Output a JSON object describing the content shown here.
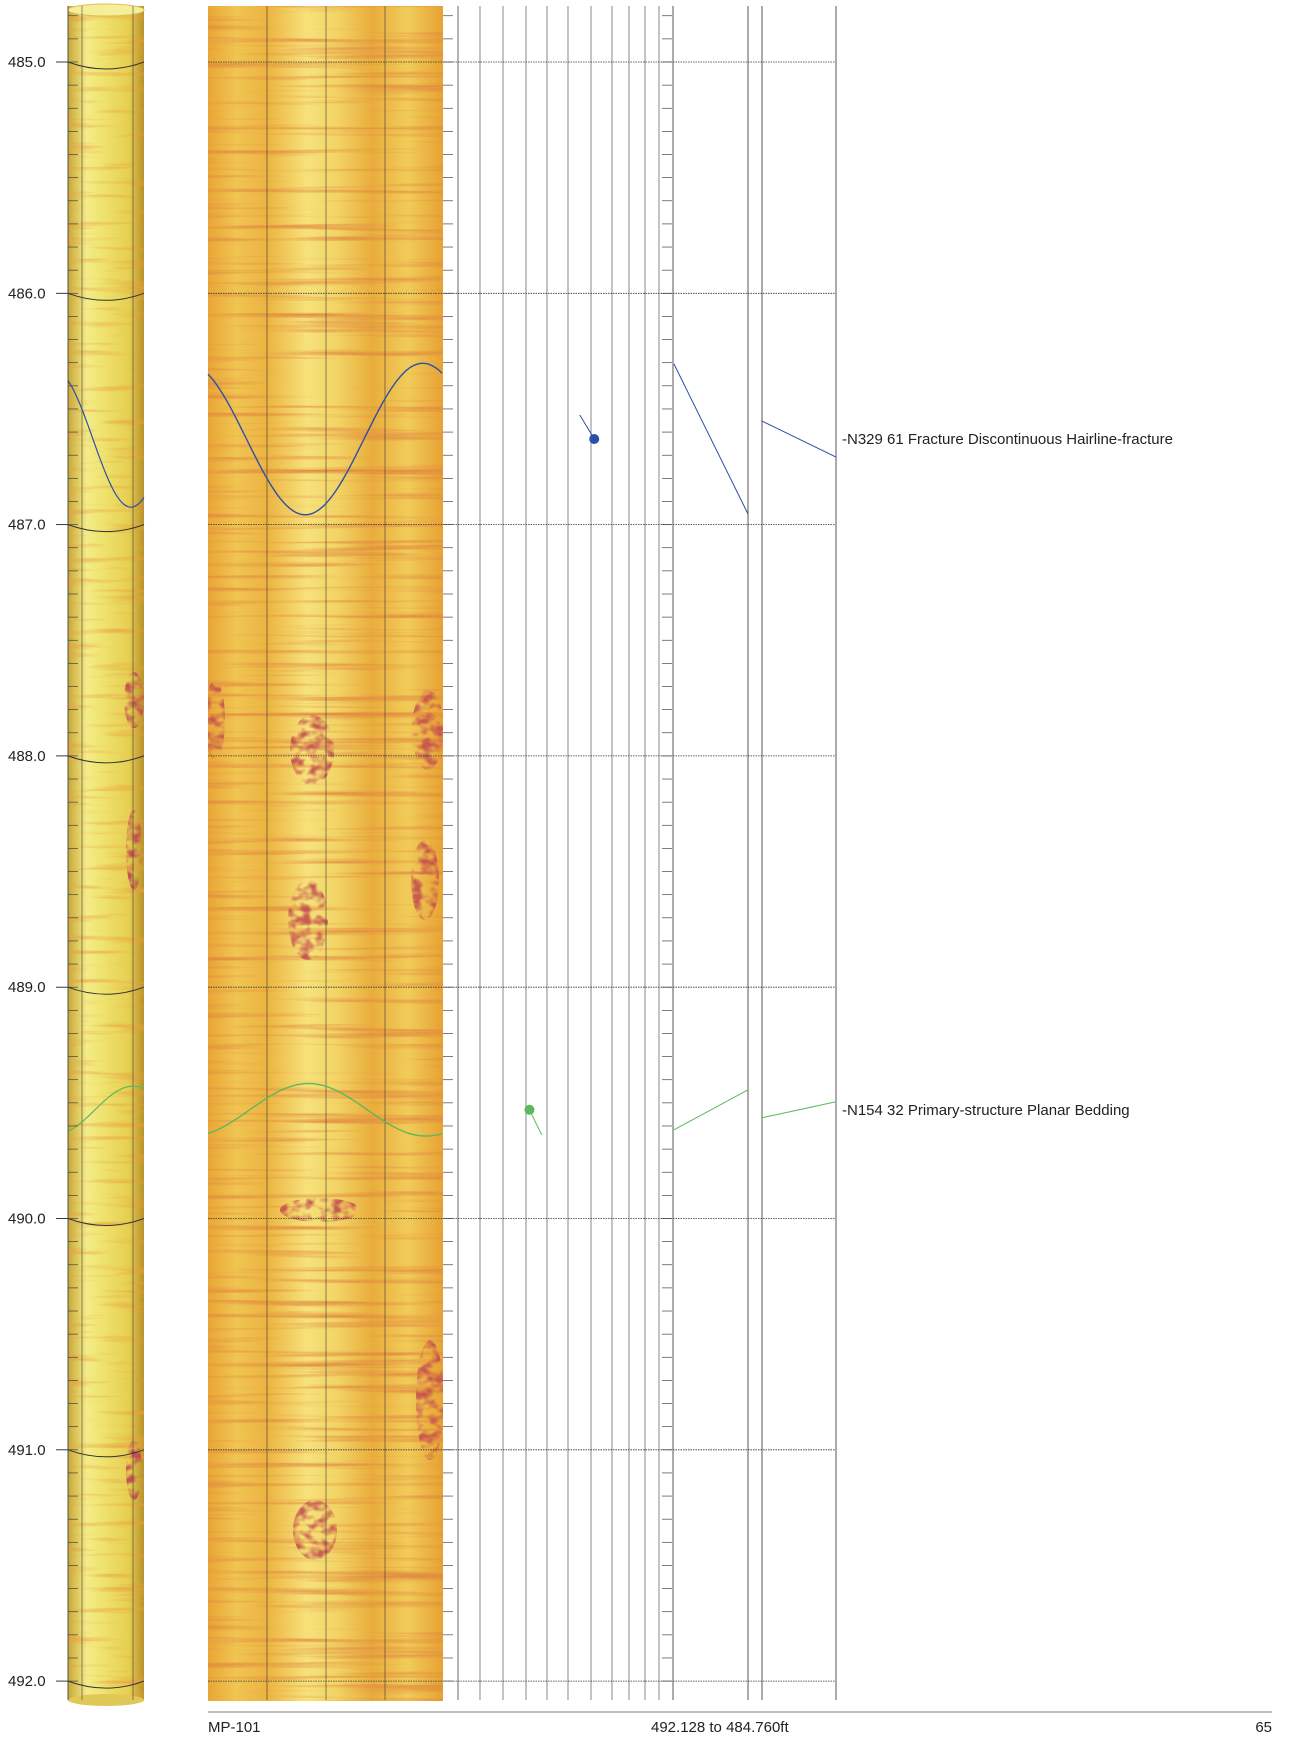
{
  "depth_axis": {
    "labels": [
      "485.0",
      "486.0",
      "487.0",
      "488.0",
      "489.0",
      "490.0",
      "491.0",
      "492.0"
    ],
    "values": [
      485.0,
      486.0,
      487.0,
      488.0,
      489.0,
      490.0,
      491.0,
      492.0
    ],
    "range": [
      484.76,
      492.128
    ]
  },
  "features": [
    {
      "label": "N329 61 Fracture Discontinuous Hairline-fracture",
      "depth": 486.63,
      "azimuth": 329,
      "dip": 61,
      "color": "#2e4fa8"
    },
    {
      "label": "N154 32 Primary-structure Planar Bedding",
      "depth": 489.53,
      "azimuth": 154,
      "dip": 32,
      "color": "#5cb85c"
    }
  ],
  "footer": {
    "well_name": "MP-101",
    "depth_range": "492.128 to 484.760ft",
    "page_number": "65"
  },
  "colors": {
    "image_light": "#f4ef7a",
    "image_mid": "#e8b640",
    "image_dark": "#9c1a1a",
    "grid": "#555555",
    "text": "#222222"
  }
}
